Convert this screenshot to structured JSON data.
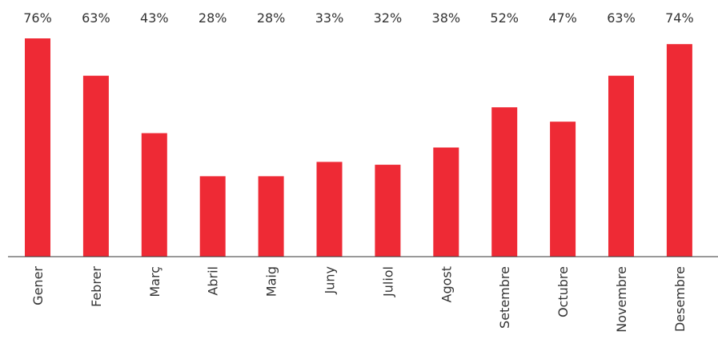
{
  "chart_data": {
    "type": "bar",
    "categories": [
      "Gener",
      "Febrer",
      "Març",
      "Abril",
      "Maig",
      "Juny",
      "Juliol",
      "Agost",
      "Setembre",
      "Octubre",
      "Novembre",
      "Desembre"
    ],
    "values": [
      76,
      63,
      43,
      28,
      28,
      33,
      32,
      38,
      52,
      47,
      63,
      74
    ],
    "value_labels": [
      "76%",
      "63%",
      "43%",
      "28%",
      "28%",
      "33%",
      "32%",
      "38%",
      "52%",
      "47%",
      "63%",
      "74%"
    ],
    "color": "#ee2a35",
    "ylim": [
      0,
      76
    ]
  }
}
